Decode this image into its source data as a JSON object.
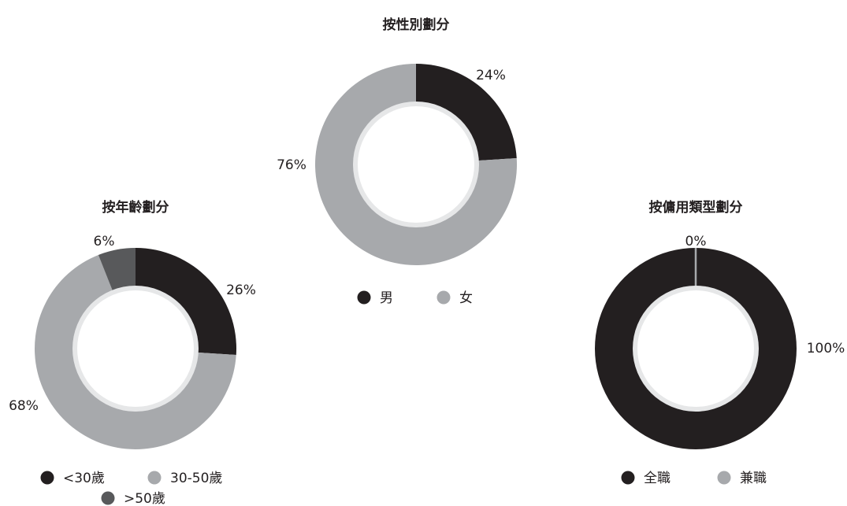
{
  "chart_data": [
    {
      "type": "pie",
      "title": "按性別劃分",
      "categories": [
        "男",
        "女"
      ],
      "values": [
        24,
        76
      ],
      "value_labels": [
        "24%",
        "76%"
      ],
      "colors": [
        "#231f20",
        "#a7a9ac"
      ],
      "hole": true
    },
    {
      "type": "pie",
      "title": "按年齡劃分",
      "categories": [
        "<30歲",
        "30-50歲",
        ">50歲"
      ],
      "values": [
        26,
        68,
        6
      ],
      "value_labels": [
        "26%",
        "68%",
        "6%"
      ],
      "colors": [
        "#231f20",
        "#a7a9ac",
        "#58595b"
      ],
      "hole": true
    },
    {
      "type": "pie",
      "title": "按傭用類型劃分",
      "categories": [
        "全職",
        "兼職"
      ],
      "values": [
        100,
        0
      ],
      "value_labels": [
        "100%",
        "0%"
      ],
      "colors": [
        "#231f20",
        "#a7a9ac"
      ],
      "hole": true
    }
  ]
}
